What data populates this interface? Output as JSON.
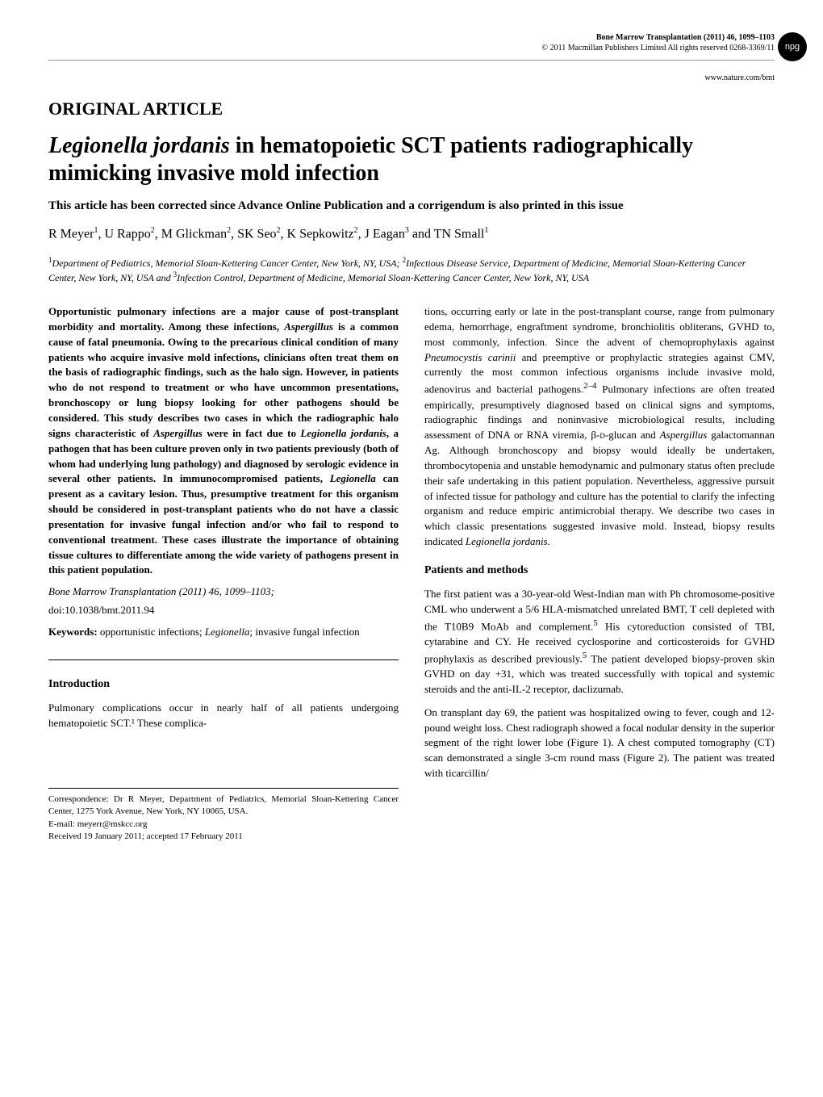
{
  "header": {
    "journal_title": "Bone Marrow Transplantation (2011) 46",
    "pages": "1099–1103",
    "copyright": "© 2011 Macmillan Publishers Limited   All rights reserved 0268-3369/11",
    "url": "www.nature.com/bmt",
    "npg_label": "npg"
  },
  "article": {
    "section_label": "ORIGINAL ARTICLE",
    "title_prefix": "Legionella jordanis",
    "title_rest": " in hematopoietic SCT patients radiographically mimicking invasive mold infection",
    "correction": "This article has been corrected since Advance Online Publication and a corrigendum is also printed in this issue",
    "authors_html": "R Meyer¹, U Rappo², M Glickman², SK Seo², K Sepkowitz², J Eagan³ and TN Small¹",
    "affiliations_html": "¹Department of Pediatrics, Memorial Sloan-Kettering Cancer Center, New York, NY, USA; ²Infectious Disease Service, Department of Medicine, Memorial Sloan-Kettering Cancer Center, New York, NY, USA and ³Infection Control, Department of Medicine, Memorial Sloan-Kettering Cancer Center, New York, NY, USA"
  },
  "left": {
    "abstract": "Opportunistic pulmonary infections are a major cause of post-transplant morbidity and mortality. Among these infections, Aspergillus is a common cause of fatal pneumonia. Owing to the precarious clinical condition of many patients who acquire invasive mold infections, clinicians often treat them on the basis of radiographic findings, such as the halo sign. However, in patients who do not respond to treatment or who have uncommon presentations, bronchoscopy or lung biopsy looking for other pathogens should be considered. This study describes two cases in which the radiographic halo signs characteristic of Aspergillus were in fact due to Legionella jordanis, a pathogen that has been culture proven only in two patients previously (both of whom had underlying lung pathology) and diagnosed by serologic evidence in several other patients. In immunocompromised patients, Legionella can present as a cavitary lesion. Thus, presumptive treatment for this organism should be considered in post-transplant patients who do not have a classic presentation for invasive fungal infection and/or who fail to respond to conventional treatment. These cases illustrate the importance of obtaining tissue cultures to differentiate among the wide variety of pathogens present in this patient population.",
    "citation_journal": "Bone Marrow Transplantation",
    "citation_rest": " (2011) 46, 1099–1103;",
    "doi": "doi:10.1038/bmt.2011.94",
    "keywords_label": "Keywords:",
    "keywords_text": " opportunistic infections; Legionella; invasive fungal infection",
    "intro_head": "Introduction",
    "intro_para": "Pulmonary complications occur in nearly half of all patients undergoing hematopoietic SCT.¹ These complica-",
    "corr_1": "Correspondence: Dr R Meyer, Department of Pediatrics, Memorial Sloan-Kettering Cancer Center, 1275 York Avenue, New York, NY 10065, USA.",
    "corr_email": "E-mail: meyerr@mskcc.org",
    "corr_received": "Received 19 January 2011; accepted 17 February 2011"
  },
  "right": {
    "para1": "tions, occurring early or late in the post-transplant course, range from pulmonary edema, hemorrhage, engraftment syndrome, bronchiolitis obliterans, GVHD to, most commonly, infection. Since the advent of chemoprophylaxis against Pneumocystis carinii and preemptive or prophylactic strategies against CMV, currently the most common infectious organisms include invasive mold, adenovirus and bacterial pathogens.²⁻⁴ Pulmonary infections are often treated empirically, presumptively diagnosed based on clinical signs and symptoms, radiographic findings and noninvasive microbiological results, including assessment of DNA or RNA viremia, β-D-glucan and Aspergillus galactomannan Ag. Although bronchoscopy and biopsy would ideally be undertaken, thrombocytopenia and unstable hemodynamic and pulmonary status often preclude their safe undertaking in this patient population. Nevertheless, aggressive pursuit of infected tissue for pathology and culture has the potential to clarify the infecting organism and reduce empiric antimicrobial therapy. We describe two cases in which classic presentations suggested invasive mold. Instead, biopsy results indicated Legionella jordanis.",
    "methods_head": "Patients and methods",
    "para2": "The first patient was a 30-year-old West-Indian man with Ph chromosome-positive CML who underwent a 5/6 HLA-mismatched unrelated BMT, T cell depleted with the T10B9 MoAb and complement.⁵ His cytoreduction consisted of TBI, cytarabine and CY. He received cyclosporine and corticosteroids for GVHD prophylaxis as described previously.⁵ The patient developed biopsy-proven skin GVHD on day +31, which was treated successfully with topical and systemic steroids and the anti-IL-2 receptor, daclizumab.",
    "para3": "On transplant day 69, the patient was hospitalized owing to fever, cough and 12-pound weight loss. Chest radiograph showed a focal nodular density in the superior segment of the right lower lobe (Figure 1). A chest computed tomography (CT) scan demonstrated a single 3-cm round mass (Figure 2). The patient was treated with ticarcillin/"
  },
  "styles": {
    "body_bg": "#ffffff",
    "text_color": "#000000",
    "divider_color": "#999999",
    "badge_bg": "#000000",
    "badge_fg": "#ffffff"
  }
}
